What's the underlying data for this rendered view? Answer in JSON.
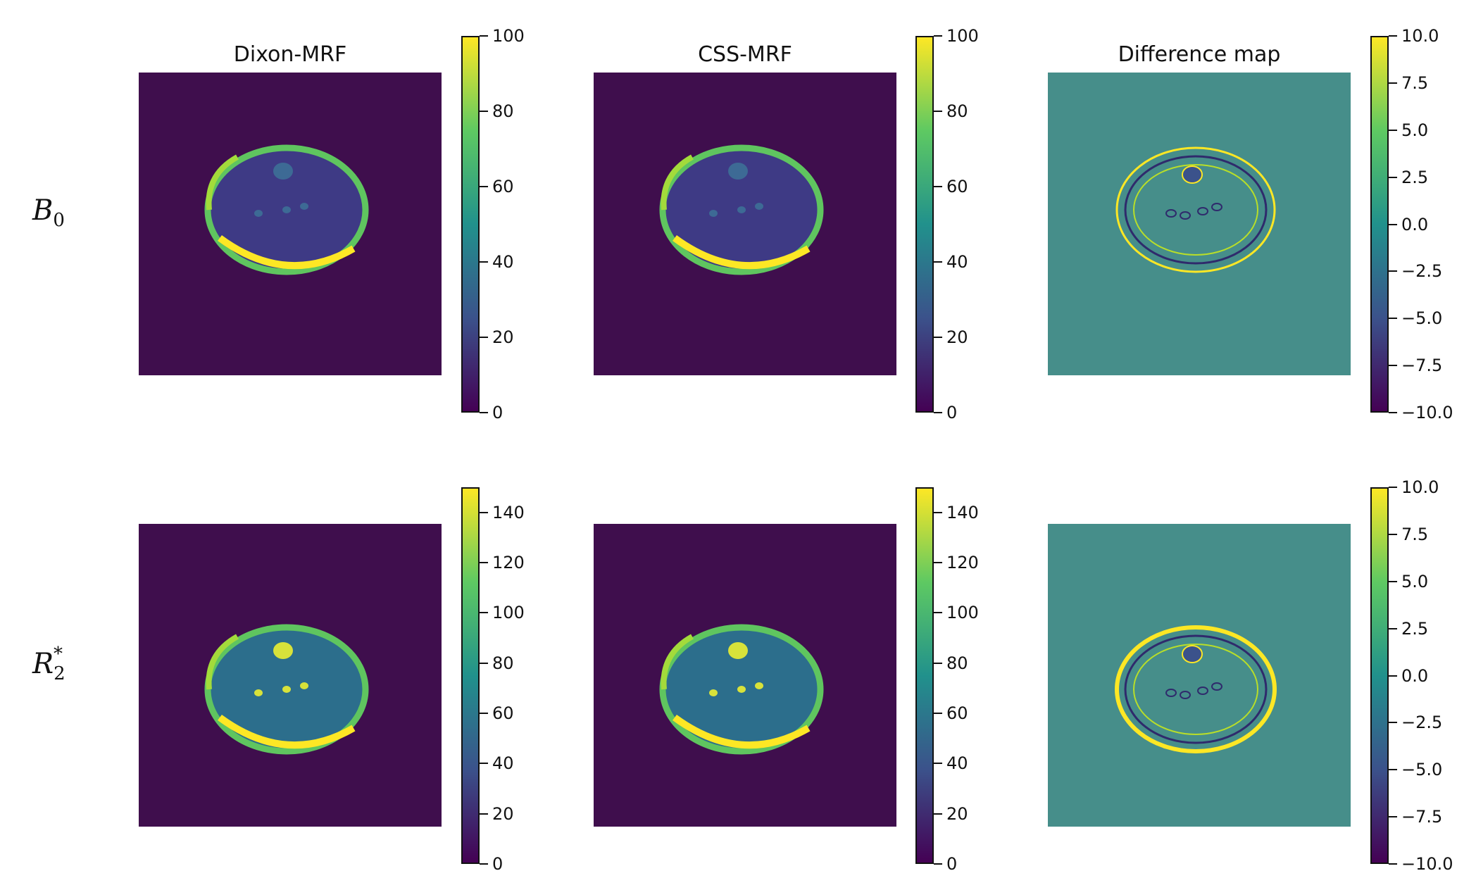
{
  "columns": [
    "Dixon-MRF",
    "CSS-MRF",
    "Difference map"
  ],
  "rows": [
    {
      "symbol": "B",
      "sub": "0",
      "sup": ""
    },
    {
      "symbol": "R",
      "sub": "2",
      "sup": "*"
    }
  ],
  "colors": {
    "background_dark": "#3f0e4d",
    "difference_zero": "#468e8a",
    "viridis": [
      "#440154",
      "#3b528b",
      "#21918c",
      "#5ec962",
      "#fde725"
    ]
  },
  "chart_data": [
    {
      "type": "heatmap",
      "title": "Dixon-MRF",
      "row": "B0",
      "colorbar_ticks": [
        "0",
        "20",
        "40",
        "60",
        "80",
        "100"
      ],
      "clim": [
        0,
        100
      ]
    },
    {
      "type": "heatmap",
      "title": "CSS-MRF",
      "row": "B0",
      "colorbar_ticks": [
        "0",
        "20",
        "40",
        "60",
        "80",
        "100"
      ],
      "clim": [
        0,
        100
      ]
    },
    {
      "type": "heatmap",
      "title": "Difference map",
      "row": "B0",
      "colorbar_ticks": [
        "−10.0",
        "−7.5",
        "−5.0",
        "−2.5",
        "0.0",
        "2.5",
        "5.0",
        "7.5",
        "10.0"
      ],
      "clim": [
        -10,
        10
      ]
    },
    {
      "type": "heatmap",
      "title": "",
      "row": "R2*",
      "colorbar_ticks": [
        "0",
        "20",
        "40",
        "60",
        "80",
        "100",
        "120",
        "140"
      ],
      "clim": [
        0,
        150
      ]
    },
    {
      "type": "heatmap",
      "title": "",
      "row": "R2*",
      "colorbar_ticks": [
        "0",
        "20",
        "40",
        "60",
        "80",
        "100",
        "120",
        "140"
      ],
      "clim": [
        0,
        150
      ]
    },
    {
      "type": "heatmap",
      "title": "",
      "row": "R2*",
      "colorbar_ticks": [
        "−10.0",
        "−7.5",
        "−5.0",
        "−2.5",
        "0.0",
        "2.5",
        "5.0",
        "7.5",
        "10.0"
      ],
      "clim": [
        -10,
        10
      ]
    }
  ]
}
